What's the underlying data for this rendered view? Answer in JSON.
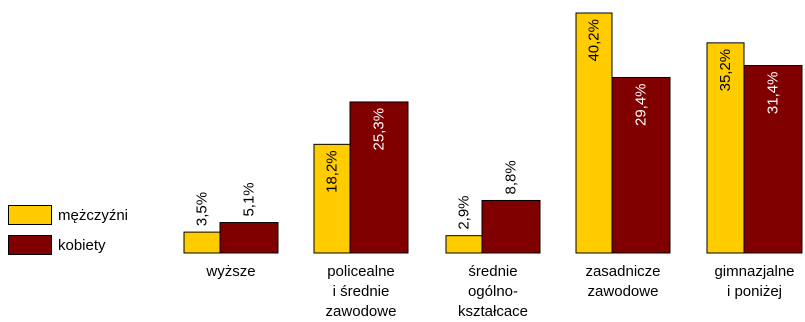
{
  "chart_data": {
    "type": "bar",
    "categories": [
      [
        "wyższe"
      ],
      [
        "policealne",
        "i średnie",
        "zawodowe"
      ],
      [
        "średnie",
        "ogólno-",
        "kształcace"
      ],
      [
        "zasadnicze",
        "zawodowe"
      ],
      [
        "gimnazjalne",
        "i poniżej"
      ]
    ],
    "series": [
      {
        "name": "mężczyźni",
        "color": "#FFCC00",
        "values": [
          3.5,
          18.2,
          2.9,
          40.2,
          35.2
        ],
        "labels": [
          "3,5%",
          "18,2%",
          "2,9%",
          "40,2%",
          "35,2%"
        ]
      },
      {
        "name": "kobiety",
        "color": "#800000",
        "values": [
          5.1,
          25.3,
          8.8,
          29.4,
          31.4
        ],
        "labels": [
          "5,1%",
          "25,3%",
          "8,8%",
          "29,4%",
          "31,4%"
        ]
      }
    ],
    "ylim": [
      0,
      42
    ],
    "grid": false,
    "legend": "left",
    "title": "",
    "xlabel": "",
    "ylabel": ""
  }
}
